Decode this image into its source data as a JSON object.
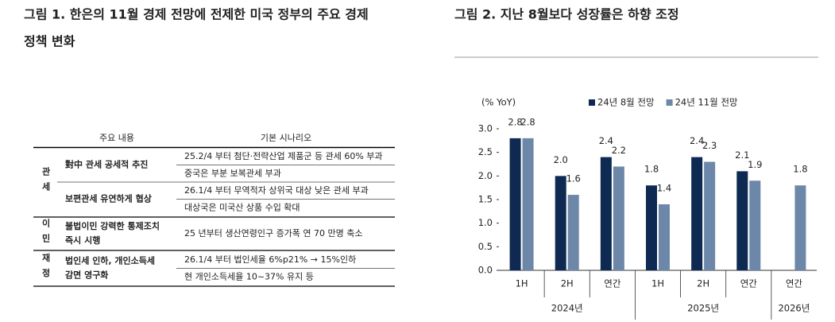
{
  "figure1": {
    "title": "그림 1. 한은의 11월 경제 전망에 전제한 미국 정부의 주요 경제",
    "title_cont": "정책 변화",
    "header": [
      "주요 내용",
      "기본 시나리오"
    ],
    "groups": [
      {
        "label": "관세",
        "items": [
          {
            "item": [
              "對中 관세 공세적 추진"
            ],
            "scenarios": [
              "25.2/4 부터 첨단·전략산업 제품군 등 관세 60% 부과",
              "중국은 부분 보복관세 부과"
            ]
          },
          {
            "item": [
              "보편관세 유연하게 협상"
            ],
            "scenarios": [
              "26.1/4 부터 무역적자 상위국 대상 낮은 관세 부과",
              "대상국은 미국산 상품 수입 확대"
            ]
          }
        ]
      },
      {
        "label": "이민",
        "items": [
          {
            "item": [
              "불법이민 강력한 통제조치",
              "즉시 시행"
            ],
            "scenarios": [
              "25 년부터 생산연령인구 증가폭 연 70 만명 축소"
            ]
          }
        ]
      },
      {
        "label": "재정",
        "items": [
          {
            "item": [
              "법인세 인하, 개인소득세",
              "감면 영구화"
            ],
            "scenarios": [
              "26.1/4 부터 법인세율 6%p21% → 15%인하",
              "현 개인소득세율 10~37% 유지 등"
            ]
          }
        ]
      }
    ]
  },
  "chart_data": {
    "type": "bar",
    "title": "그림 2. 지난 8월보다 성장률은 하향 조정",
    "y_label": "(% YoY)",
    "categories": [
      "1H",
      "2H",
      "연간",
      "1H",
      "2H",
      "연간",
      "연간"
    ],
    "category_groups": [
      "2024년",
      "2024년",
      "2024년",
      "2025년",
      "2025년",
      "2025년",
      "2026년"
    ],
    "series": [
      {
        "name": "24년 8월 전망",
        "color": "#0e2a52",
        "values": [
          2.8,
          2.0,
          2.4,
          1.8,
          2.4,
          2.1,
          null
        ],
        "value_labels": [
          "2.8",
          "2.0",
          "2.4",
          "1.8",
          "2.4",
          "2.1",
          null
        ]
      },
      {
        "name": "24년 11월 전망",
        "color": "#6c87a8",
        "values": [
          2.8,
          1.6,
          2.2,
          1.4,
          2.3,
          1.9,
          1.8
        ],
        "value_labels": [
          "2.8",
          "1.6",
          "2.2",
          "1.4",
          "2.3",
          "1.9",
          "1.8"
        ]
      }
    ],
    "ylim": [
      0,
      3
    ],
    "yticks": [
      {
        "value": 0,
        "label": "0.0"
      },
      0.5,
      {
        "value": 1,
        "label": "1.0"
      },
      1.5,
      {
        "value": 2,
        "label": "2.0"
      },
      2.5,
      {
        "value": 3,
        "label": "3.0"
      }
    ],
    "grid": false,
    "legend": "top"
  }
}
